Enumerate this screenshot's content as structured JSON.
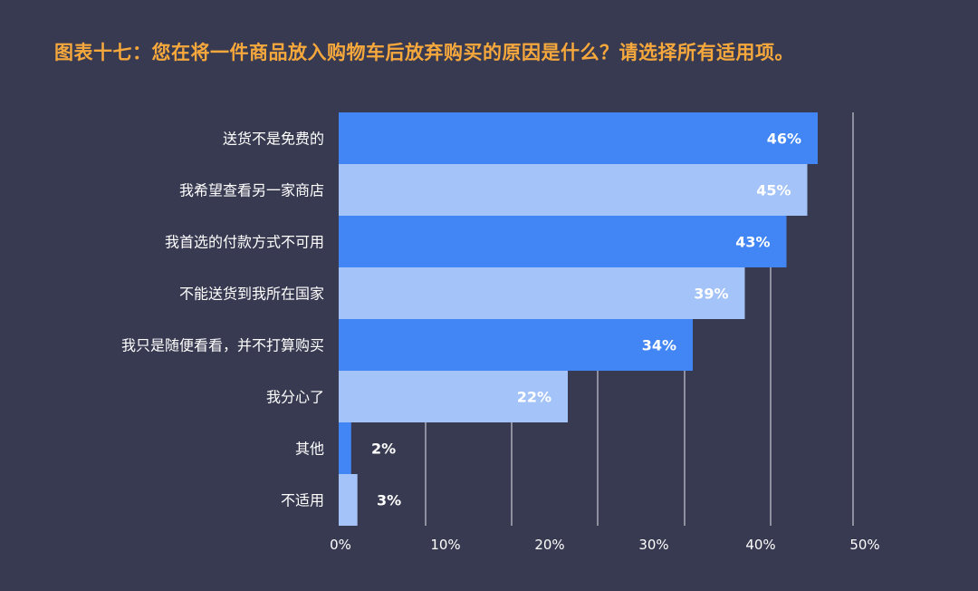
{
  "chart_data": {
    "type": "bar",
    "orientation": "horizontal",
    "title": "图表十七：您在将一件商品放入购物车后放弃购买的原因是什么？请选择所有适用项。",
    "categories": [
      "送货不是免费的",
      "我希望查看另一家商店",
      "我首选的付款方式不可用",
      "不能送货到我所在国家",
      "我只是随便看看，并不打算购买",
      "我分心了",
      "其他",
      "不适用"
    ],
    "values": [
      46,
      45,
      43,
      39,
      34,
      22,
      2,
      3
    ],
    "data_labels": [
      "46%",
      "45%",
      "43%",
      "39%",
      "34%",
      "22%",
      "2%",
      "3%"
    ],
    "xlim": [
      0,
      50
    ],
    "x_ticks": [
      "0%",
      "10%",
      "20%",
      "30%",
      "40%",
      "50%"
    ],
    "grid": true,
    "colors": {
      "background": "#383a51",
      "title": "#f6a83c",
      "bar_dark": "#4285f4",
      "bar_light": "#a4c3f8",
      "grid": "#c8c9d4",
      "text": "#ffffff"
    }
  }
}
